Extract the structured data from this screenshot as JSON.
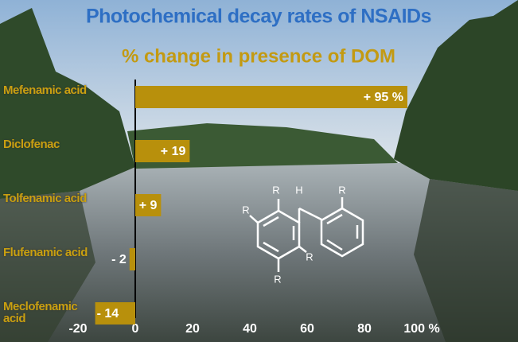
{
  "chart_data": {
    "type": "bar",
    "orientation": "horizontal",
    "title": "Photochemical decay rates of NSAIDs",
    "subtitle": "% change in presence of DOM",
    "categories": [
      "Mefenamic acid",
      "Diclofenac",
      "Tolfenamic acid",
      "Flufenamic acid",
      "Meclofenamic acid"
    ],
    "values": [
      95,
      19,
      9,
      -2,
      -14
    ],
    "value_labels": [
      "+ 95 %",
      "+ 19",
      "+ 9",
      "- 2",
      "- 14"
    ],
    "color": "#b8900c",
    "xlim": [
      -20,
      100
    ],
    "xticks": [
      -20,
      0,
      20,
      40,
      60,
      80,
      {
        "value": 100,
        "label": "100 %"
      }
    ],
    "annotations": [
      "R",
      "R",
      "R",
      "R",
      "H",
      "R"
    ]
  }
}
